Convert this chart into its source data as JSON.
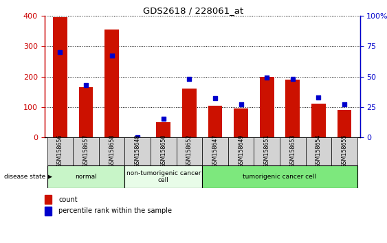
{
  "title": "GDS2618 / 228061_at",
  "samples": [
    "GSM158656",
    "GSM158657",
    "GSM158658",
    "GSM158648",
    "GSM158650",
    "GSM158652",
    "GSM158647",
    "GSM158649",
    "GSM158651",
    "GSM158653",
    "GSM158654",
    "GSM158655"
  ],
  "counts": [
    395,
    165,
    355,
    0,
    50,
    160,
    105,
    95,
    200,
    190,
    110,
    90
  ],
  "percentiles": [
    70,
    43,
    67,
    0,
    15,
    48,
    32,
    27,
    49,
    48,
    33,
    27
  ],
  "ylim_left": [
    0,
    400
  ],
  "ylim_right": [
    0,
    100
  ],
  "yticks_left": [
    0,
    100,
    200,
    300,
    400
  ],
  "yticks_right": [
    0,
    25,
    50,
    75,
    100
  ],
  "ytick_labels_right": [
    "0",
    "25",
    "50",
    "75",
    "100%"
  ],
  "groups": [
    {
      "label": "normal",
      "start": 0,
      "end": 3,
      "color": "#c8f5c8"
    },
    {
      "label": "non-tumorigenic cancer\ncell",
      "start": 3,
      "end": 6,
      "color": "#e8fce8"
    },
    {
      "label": "tumorigenic cancer cell",
      "start": 6,
      "end": 12,
      "color": "#7de87d"
    }
  ],
  "bar_color": "#cc1100",
  "dot_color": "#0000cc",
  "left_axis_color": "#cc0000",
  "right_axis_color": "#0000cc",
  "disease_state_label": "disease state",
  "legend_count_label": "count",
  "legend_percentile_label": "percentile rank within the sample",
  "tick_area_color": "#d3d3d3",
  "grid_color": "#000000"
}
